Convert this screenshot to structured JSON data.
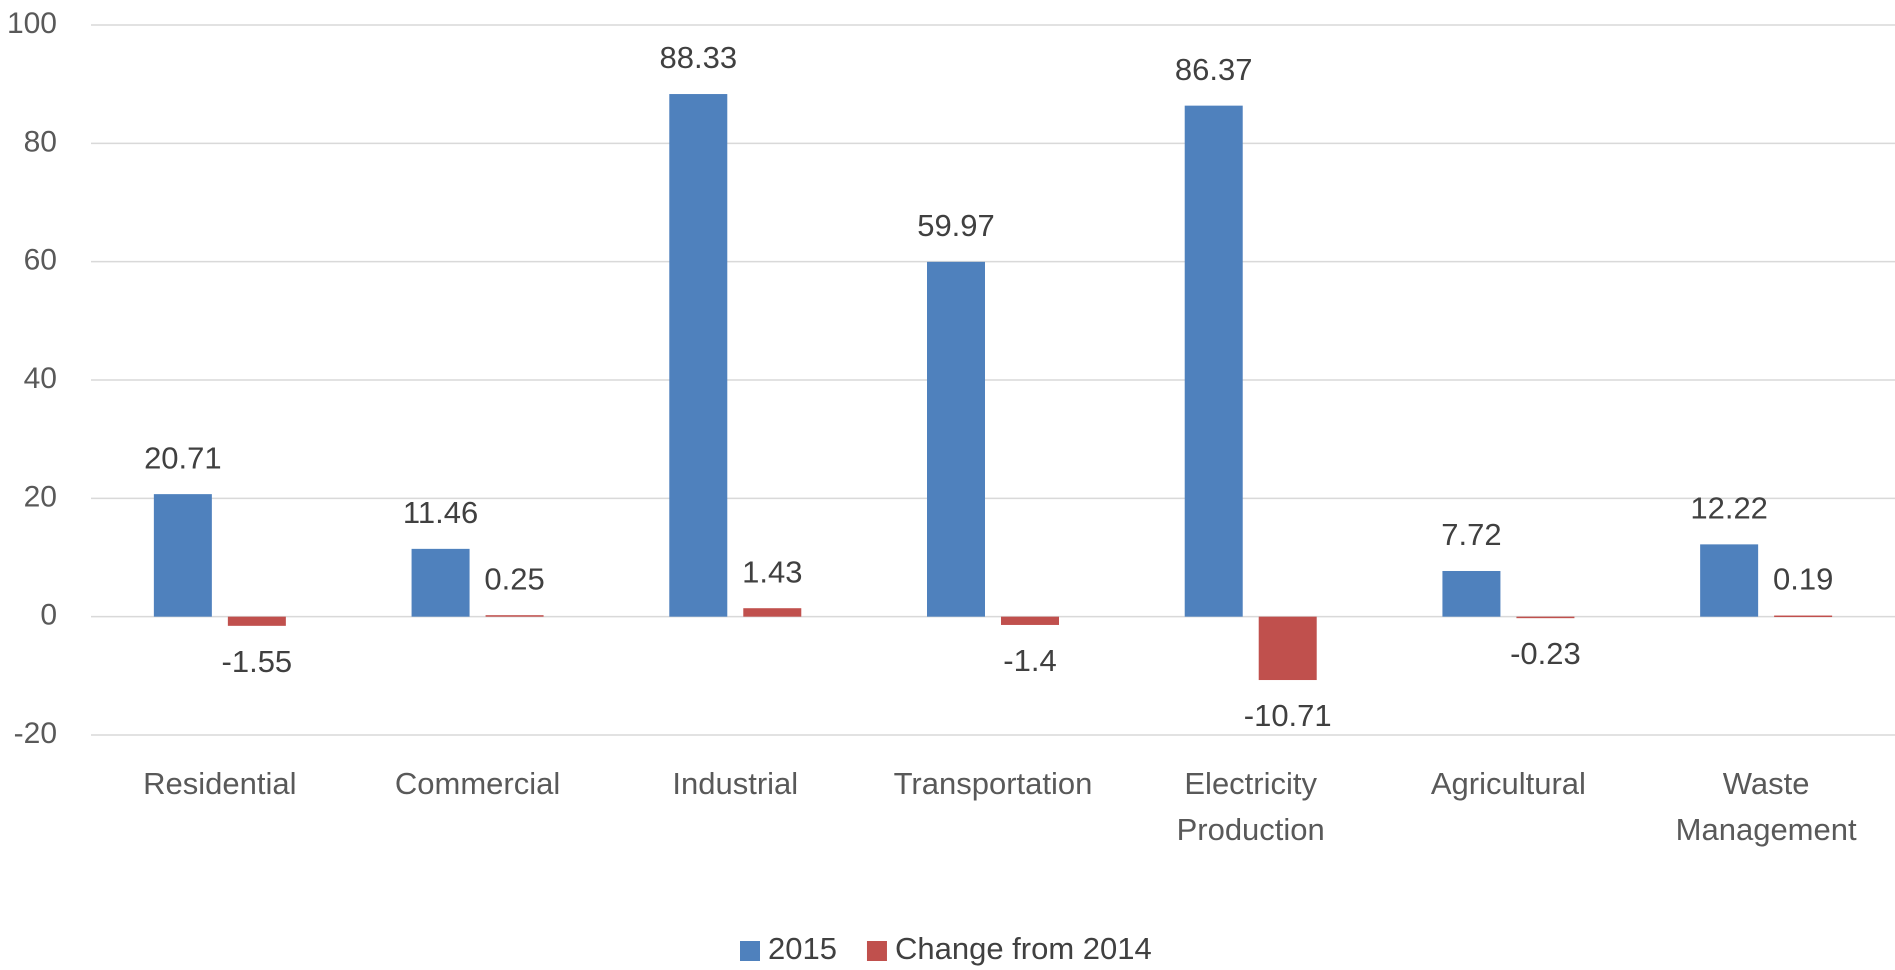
{
  "chart_data": {
    "type": "bar",
    "categories": [
      "Residential",
      "Commercial",
      "Industrial",
      "Transportation",
      "Electricity Production",
      "Agricultural",
      "Waste Management"
    ],
    "series": [
      {
        "name": "2015",
        "color": "#4f81bd",
        "values": [
          20.71,
          11.46,
          88.33,
          59.97,
          86.37,
          7.72,
          12.22
        ]
      },
      {
        "name": "Change from 2014",
        "color": "#c0504d",
        "values": [
          -1.55,
          0.25,
          1.43,
          -1.4,
          -10.71,
          -0.23,
          0.19
        ]
      }
    ],
    "ylim": [
      -20,
      100
    ],
    "yticks": [
      -20,
      0,
      20,
      40,
      60,
      80,
      100
    ],
    "grid": true,
    "legend": "bottom"
  }
}
